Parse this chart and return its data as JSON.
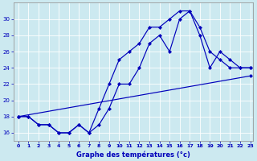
{
  "xlabel": "Graphe des températures (°c)",
  "xlim_min": -0.5,
  "xlim_max": 23.3,
  "ylim_min": 15.0,
  "ylim_max": 32.0,
  "xticks": [
    0,
    1,
    2,
    3,
    4,
    5,
    6,
    7,
    8,
    9,
    10,
    11,
    12,
    13,
    14,
    15,
    16,
    17,
    18,
    19,
    20,
    21,
    22,
    23
  ],
  "yticks": [
    16,
    18,
    20,
    22,
    24,
    26,
    28,
    30
  ],
  "bg_color": "#cce9f0",
  "line_color": "#0000bb",
  "grid_color": "#ffffff",
  "series": [
    {
      "x": [
        0,
        1,
        2,
        3,
        4,
        5,
        6,
        7,
        8,
        9,
        10,
        11,
        12,
        13,
        14,
        15,
        16,
        17,
        18,
        19,
        20,
        21,
        22,
        23
      ],
      "y": [
        18,
        18,
        17,
        17,
        16,
        16,
        17,
        16,
        19,
        22,
        25,
        26,
        27,
        29,
        29,
        30,
        31,
        31,
        29,
        26,
        25,
        24,
        24,
        24
      ]
    },
    {
      "x": [
        0,
        1,
        2,
        3,
        4,
        5,
        6,
        7,
        8,
        9,
        10,
        11,
        12,
        13,
        14,
        15,
        16,
        17,
        18,
        19,
        20,
        21,
        22,
        23
      ],
      "y": [
        18,
        18,
        17,
        17,
        16,
        16,
        17,
        16,
        17,
        19,
        22,
        22,
        24,
        27,
        28,
        26,
        30,
        31,
        28,
        24,
        26,
        25,
        24,
        24
      ]
    },
    {
      "x": [
        0,
        23
      ],
      "y": [
        18,
        23
      ]
    }
  ]
}
